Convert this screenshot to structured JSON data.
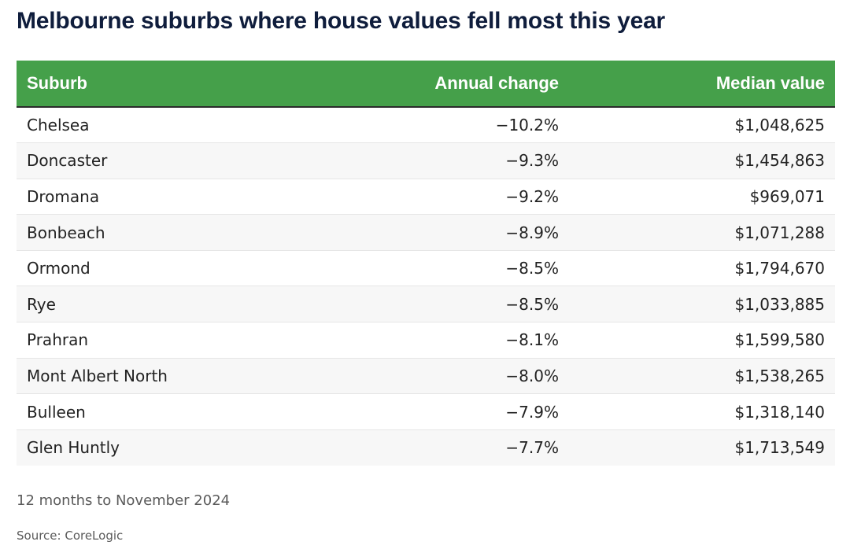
{
  "title": "Melbourne suburbs where house values fell most this year",
  "chart_data": {
    "type": "table",
    "columns": [
      "Suburb",
      "Annual change",
      "Median value"
    ],
    "rows": [
      [
        "Chelsea",
        "−10.2%",
        "$1,048,625"
      ],
      [
        "Doncaster",
        "−9.3%",
        "$1,454,863"
      ],
      [
        "Dromana",
        "−9.2%",
        "$969,071"
      ],
      [
        "Bonbeach",
        "−8.9%",
        "$1,071,288"
      ],
      [
        "Ormond",
        "−8.5%",
        "$1,794,670"
      ],
      [
        "Rye",
        "−8.5%",
        "$1,033,885"
      ],
      [
        "Prahran",
        "−8.1%",
        "$1,599,580"
      ],
      [
        "Mont Albert North",
        "−8.0%",
        "$1,538,265"
      ],
      [
        "Bulleen",
        "−7.9%",
        "$1,318,140"
      ],
      [
        "Glen Huntly",
        "−7.7%",
        "$1,713,549"
      ]
    ],
    "header_color": "#45a04a"
  },
  "footnote": "12 months to November 2024",
  "source": "Source: CoreLogic"
}
